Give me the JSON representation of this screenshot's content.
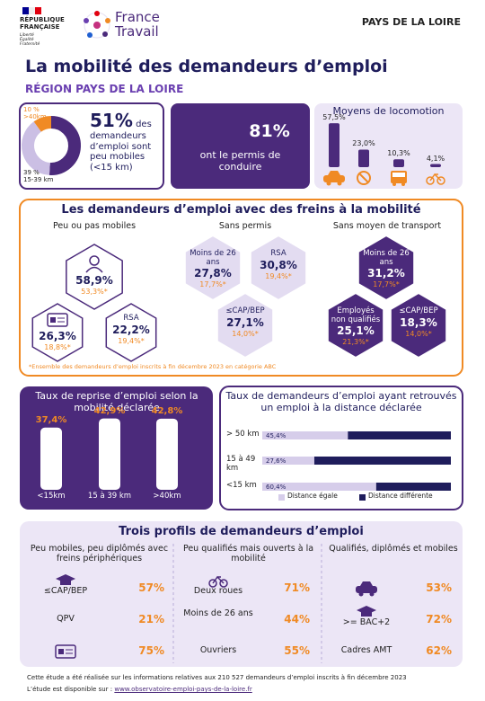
{
  "header": {
    "rf": [
      "RÉPUBLIQUE",
      "FRANÇAISE"
    ],
    "motto": [
      "Liberté",
      "Égalité",
      "Fraternité"
    ],
    "brand": [
      "France",
      "Travail"
    ],
    "region": "PAYS DE LA LOIRE"
  },
  "title": "La mobilité des demandeurs d’emploi",
  "subtitle": "RÉGION PAYS DE LA LOIRE",
  "mobility": {
    "type": "donut",
    "values": [
      51,
      39,
      10
    ],
    "value_labels": [
      "51%",
      "39 %",
      "10 %"
    ],
    "segment_labels": [
      null,
      "15-39 km",
      ">40km"
    ],
    "colors": [
      "#4b2a7b",
      "#cbbfe4",
      "#f08a24"
    ],
    "text": "des demandeurs d’emploi sont peu mobiles (<15 km)"
  },
  "licence": {
    "value": "81%",
    "text": "ont le permis de conduire"
  },
  "transport": {
    "type": "bar",
    "title": "Moyens de locomotion",
    "values": [
      57.5,
      23.0,
      10.3,
      4.1
    ],
    "value_labels": [
      "57,5%",
      "23,0%",
      "10,3%",
      "4,1%"
    ],
    "color": "#4b2a7b"
  },
  "barriers": {
    "title": "Les demandeurs d’emploi avec des freins à la mobilité",
    "groups": [
      {
        "title": "Peu ou pas mobiles",
        "items": [
          {
            "value": "58,9%",
            "reference": "53,3%*"
          },
          {
            "value": "26,3%",
            "reference": "18,8%*"
          },
          {
            "label": "RSA",
            "value": "22,2%",
            "reference": "19,4%*"
          }
        ]
      },
      {
        "title": "Sans permis",
        "items": [
          {
            "label": "Moins de 26 ans",
            "value": "27,8%",
            "reference": "17,7%*"
          },
          {
            "label": "RSA",
            "value": "30,8%",
            "reference": "19,4%*"
          },
          {
            "label": "≤CAP/BEP",
            "value": "27,1%",
            "reference": "14,0%*"
          }
        ]
      },
      {
        "title": "Sans moyen de transport",
        "items": [
          {
            "label": "Moins de 26 ans",
            "value": "31,2%",
            "reference": "17,7%*"
          },
          {
            "label": "Employés non qualifiés",
            "value": "25,1%",
            "reference": "21,3%*"
          },
          {
            "label": "≤CAP/BEP",
            "value": "18,3%",
            "reference": "14,0%*"
          }
        ]
      }
    ],
    "footnote": "*Ensemble des demandeurs d’emploi inscrits à fin décembre 2023 en catégorie ABC"
  },
  "reemployment": {
    "type": "bar",
    "title": "Taux de reprise d’emploi selon la mobilité déclarée",
    "categories": [
      "<15km",
      "15 à 39 km",
      ">40km"
    ],
    "values": [
      37.4,
      42.9,
      42.8
    ],
    "value_labels": [
      "37,4%",
      "42,9%",
      "42,8%"
    ],
    "color": "#ffffff"
  },
  "distance": {
    "type": "stacked-bar",
    "title": "Taux de demandeurs d’emploi ayant retrouvés un emploi à la distance déclarée",
    "categories": [
      "> 50 km",
      "15 à 49 km",
      "<15 km"
    ],
    "series": [
      {
        "name": "Distance égale",
        "color": "#d6cdea",
        "values": [
          45.4,
          27.6,
          60.4
        ],
        "value_labels": [
          "45,4%",
          "27,6%",
          "60,4%"
        ]
      },
      {
        "name": "Distance différente",
        "color": "#1f1d5c",
        "values": [
          54.6,
          72.4,
          39.6
        ]
      }
    ]
  },
  "profiles": {
    "title": "Trois profils de demandeurs d’emploi",
    "groups": [
      {
        "title": "Peu mobiles, peu diplômés avec freins périphériques",
        "rows": [
          {
            "label": "≤CAP/BEP",
            "value": "57%"
          },
          {
            "label": "QPV",
            "value": "21%"
          },
          {
            "value": "75%"
          }
        ]
      },
      {
        "title": "Peu qualifiés mais ouverts à la mobilité",
        "rows": [
          {
            "label": "Deux roues",
            "value": "71%"
          },
          {
            "label": "Moins de 26 ans",
            "value": "44%"
          },
          {
            "label": "Ouvriers",
            "value": "55%"
          }
        ]
      },
      {
        "title": "Qualifiés, diplômés et mobiles",
        "rows": [
          {
            "value": "53%"
          },
          {
            "label": ">= BAC+2",
            "value": "72%"
          },
          {
            "label": "Cadres AMT",
            "value": "62%"
          }
        ]
      }
    ]
  },
  "footer": {
    "note": "Cette étude a été réalisée sur les informations relatives aux 210 527 demandeurs d’emploi inscrits à fin décembre 2023",
    "source_label": "L’étude est disponible sur :",
    "url": "www.observatoire-emploi-pays-de-la-loire.fr"
  }
}
